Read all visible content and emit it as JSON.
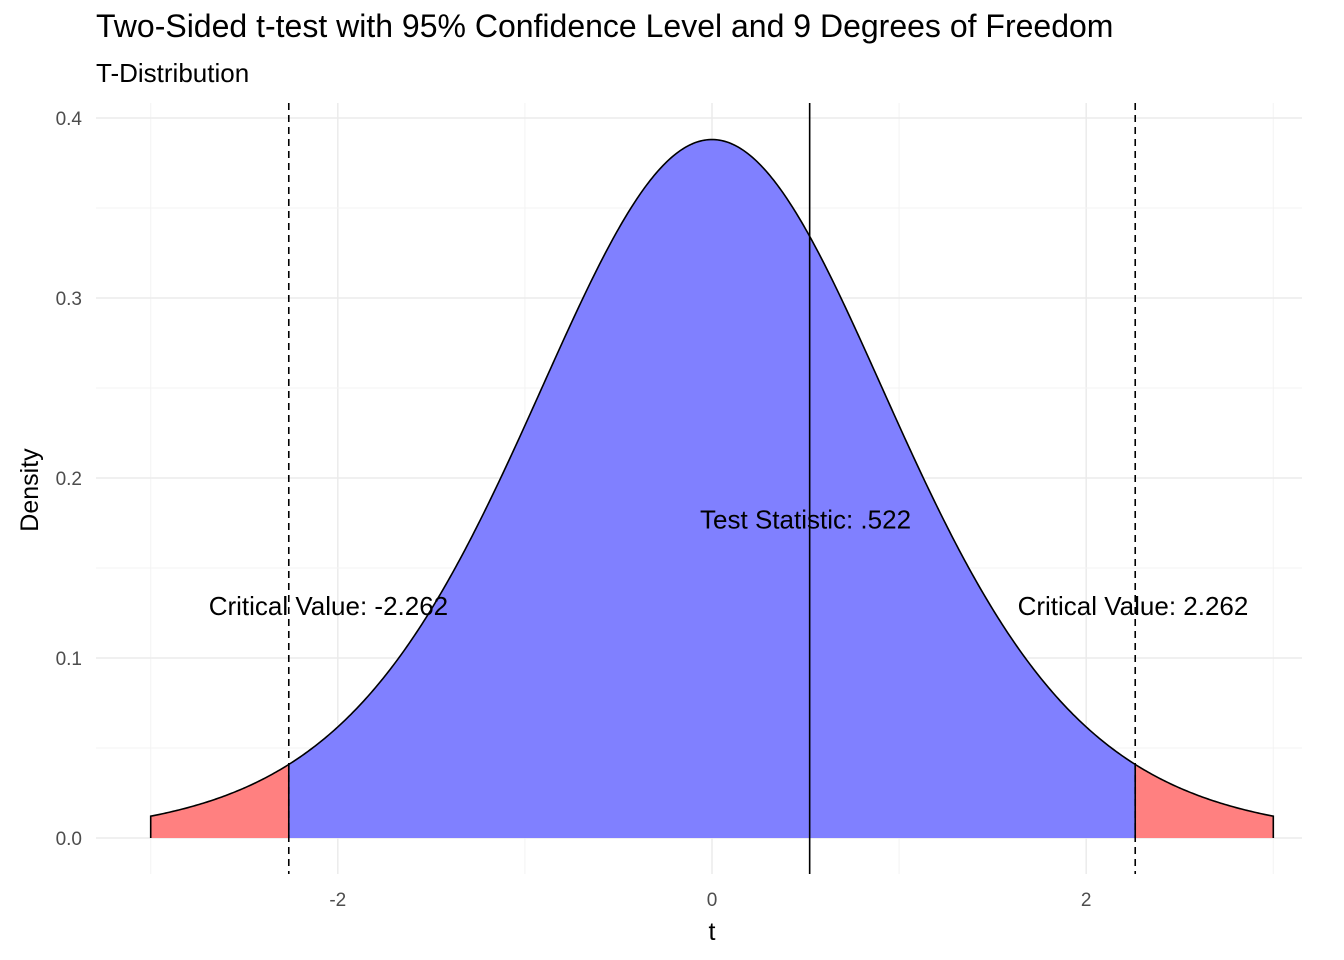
{
  "chart_data": {
    "type": "area",
    "title": "Two-Sided t-test with 95% Confidence Level and 9 Degrees of Freedom",
    "subtitle": "T-Distribution",
    "xlabel": "t",
    "ylabel": "Density",
    "xlim": [
      -3,
      3
    ],
    "ylim": [
      0,
      0.4
    ],
    "x_ticks": [
      -2,
      0,
      2
    ],
    "x_tick_labels": [
      "-2",
      "0",
      "2"
    ],
    "y_ticks": [
      0,
      0.1,
      0.2,
      0.3,
      0.4
    ],
    "y_tick_labels": [
      "0.0",
      "0.1",
      "0.2",
      "0.3",
      "0.4"
    ],
    "degrees_of_freedom": 9,
    "grid": true,
    "regions": [
      {
        "from": -3,
        "to": -2.262,
        "color": "#ff8080"
      },
      {
        "from": -2.262,
        "to": 2.262,
        "color": "#8080ff"
      },
      {
        "from": 2.262,
        "to": 3,
        "color": "#ff8080"
      }
    ],
    "vlines": [
      {
        "x": -2.262,
        "style": "dashed"
      },
      {
        "x": 2.262,
        "style": "dashed"
      },
      {
        "x": 0.522,
        "style": "solid"
      }
    ],
    "annotations": [
      {
        "text": "Critical Value: -2.262",
        "x": -2.05,
        "y": 0.129
      },
      {
        "text": "Test Statistic: .522",
        "x": 0.5,
        "y": 0.177
      },
      {
        "text": "Critical Value: 2.262",
        "x": 2.25,
        "y": 0.129
      }
    ]
  }
}
